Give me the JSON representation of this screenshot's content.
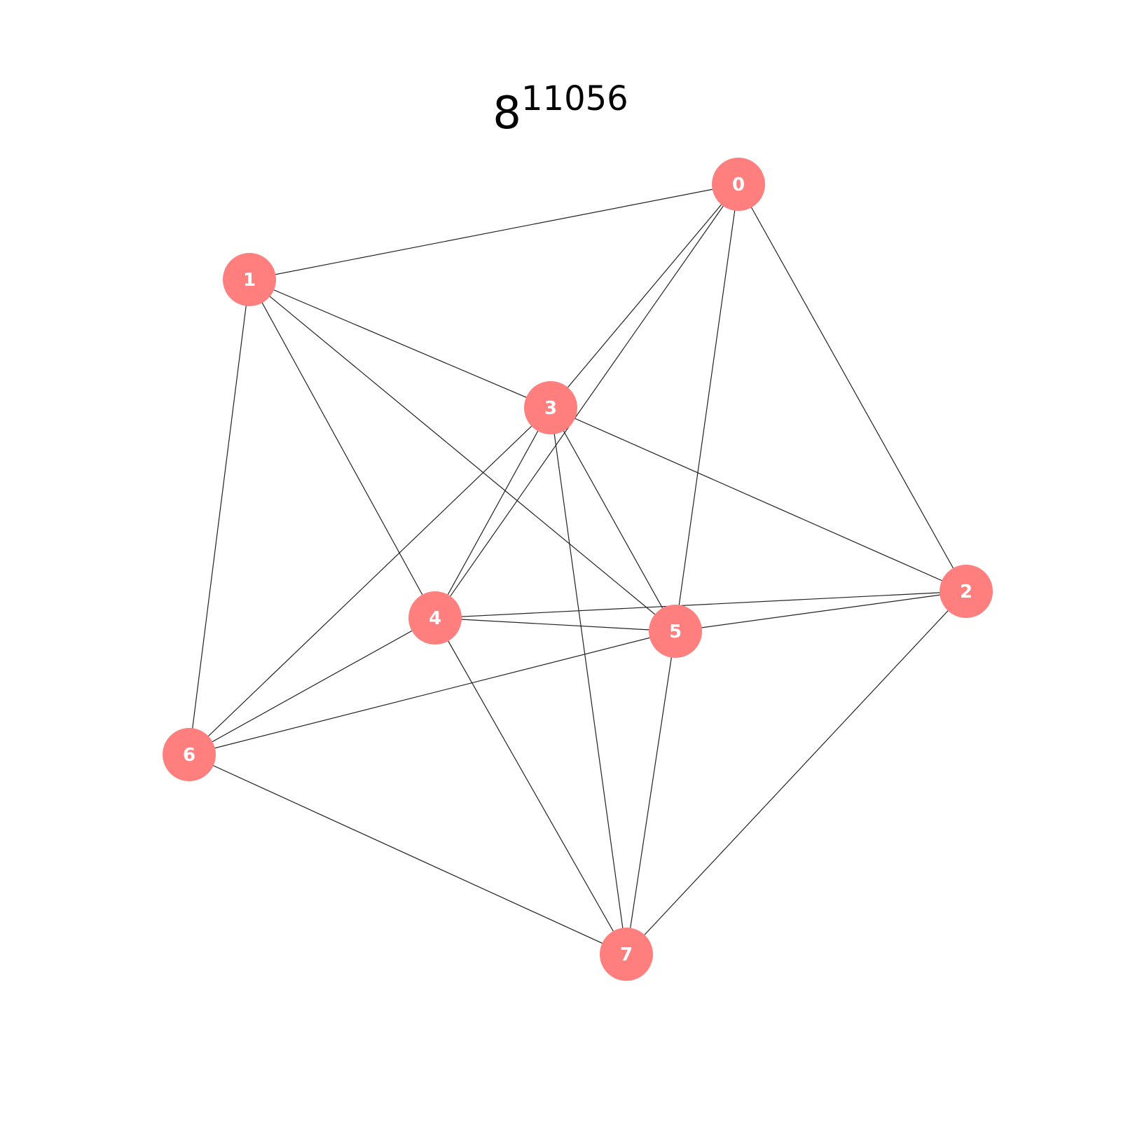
{
  "title": {
    "base": "8",
    "exponent": "11056"
  },
  "colors": {
    "node_fill": "#ff7f7f",
    "node_label": "#ffffff",
    "edge": "#222222",
    "background": "#ffffff"
  },
  "nodes": [
    {
      "id": "0",
      "label": "0"
    },
    {
      "id": "1",
      "label": "1"
    },
    {
      "id": "2",
      "label": "2"
    },
    {
      "id": "3",
      "label": "3"
    },
    {
      "id": "4",
      "label": "4"
    },
    {
      "id": "5",
      "label": "5"
    },
    {
      "id": "6",
      "label": "6"
    },
    {
      "id": "7",
      "label": "7"
    }
  ],
  "edges": [
    [
      "0",
      "1"
    ],
    [
      "0",
      "3"
    ],
    [
      "0",
      "4"
    ],
    [
      "0",
      "5"
    ],
    [
      "0",
      "2"
    ],
    [
      "1",
      "3"
    ],
    [
      "1",
      "4"
    ],
    [
      "1",
      "5"
    ],
    [
      "1",
      "6"
    ],
    [
      "3",
      "2"
    ],
    [
      "3",
      "4"
    ],
    [
      "3",
      "5"
    ],
    [
      "3",
      "6"
    ],
    [
      "3",
      "7"
    ],
    [
      "4",
      "2"
    ],
    [
      "4",
      "5"
    ],
    [
      "4",
      "6"
    ],
    [
      "4",
      "7"
    ],
    [
      "5",
      "2"
    ],
    [
      "5",
      "6"
    ],
    [
      "5",
      "7"
    ],
    [
      "2",
      "7"
    ],
    [
      "6",
      "7"
    ]
  ]
}
